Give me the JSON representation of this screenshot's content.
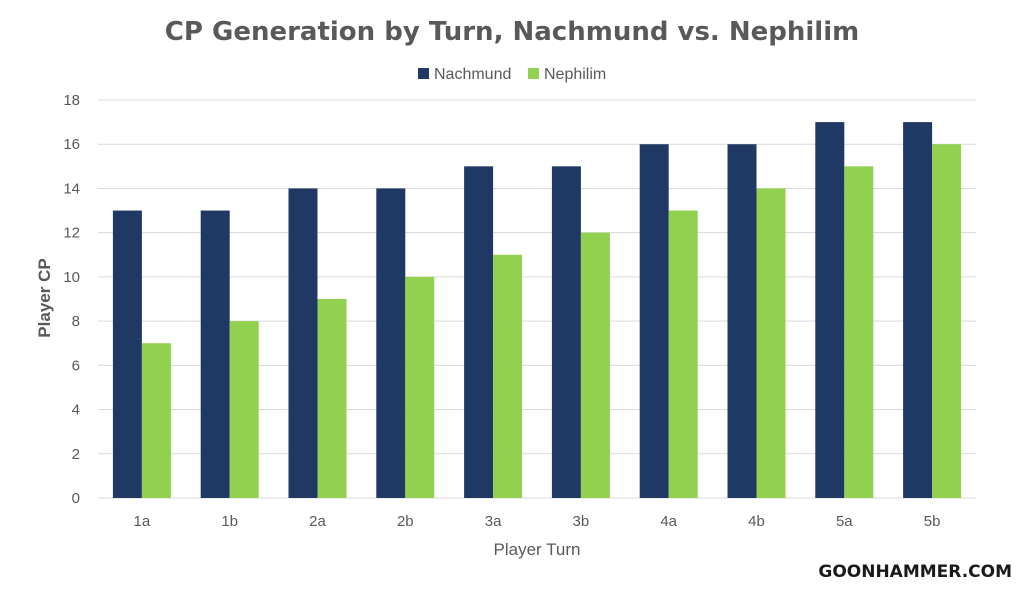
{
  "chart_data": {
    "type": "bar",
    "title": "CP Generation by Turn, Nachmund vs. Nephilim",
    "xlabel": "Player Turn",
    "ylabel": "Player CP",
    "ylim": [
      0,
      18
    ],
    "yticks": [
      0,
      2,
      4,
      6,
      8,
      10,
      12,
      14,
      16,
      18
    ],
    "grid": true,
    "legend_position": "top",
    "categories": [
      "1a",
      "1b",
      "2a",
      "2b",
      "3a",
      "3b",
      "4a",
      "4b",
      "5a",
      "5b"
    ],
    "series": [
      {
        "name": "Nachmund",
        "color": "#1f3864",
        "values": [
          13,
          13,
          14,
          14,
          15,
          15,
          16,
          16,
          17,
          17
        ]
      },
      {
        "name": "Nephilim",
        "color": "#92d050",
        "values": [
          7,
          8,
          9,
          10,
          11,
          12,
          13,
          14,
          15,
          16
        ]
      }
    ]
  },
  "watermark": "GOONHAMMER.COM"
}
